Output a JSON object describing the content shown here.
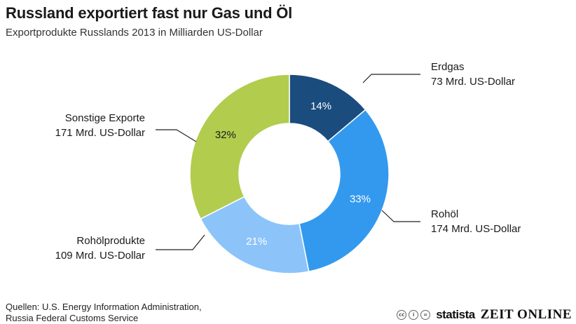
{
  "header": {
    "title": "Russland exportiert fast nur Gas und Öl",
    "subtitle": "Exportprodukte Russlands 2013 in Milliarden US-Dollar"
  },
  "chart_data": {
    "type": "pie",
    "variant": "donut",
    "title": "Russland exportiert fast nur Gas und Öl",
    "subtitle": "Exportprodukte Russlands 2013 in Milliarden US-Dollar",
    "unit": "Mrd. US-Dollar",
    "slices": [
      {
        "name": "Erdgas",
        "value": 73,
        "value_label": "73 Mrd. US-Dollar",
        "percent": 14,
        "percent_label": "14%",
        "color": "#1b4c7e",
        "text_color": "#ffffff"
      },
      {
        "name": "Rohöl",
        "value": 174,
        "value_label": "174 Mrd. US-Dollar",
        "percent": 33,
        "percent_label": "33%",
        "color": "#3399ee",
        "text_color": "#ffffff"
      },
      {
        "name": "Rohölprodukte",
        "value": 109,
        "value_label": "109 Mrd. US-Dollar",
        "percent": 21,
        "percent_label": "21%",
        "color": "#8cc4fa",
        "text_color": "#ffffff"
      },
      {
        "name": "Sonstige Exporte",
        "value": 171,
        "value_label": "171 Mrd. US-Dollar",
        "percent": 32,
        "percent_label": "32%",
        "color": "#b2cc4e",
        "text_color": "#1a1a1a"
      }
    ]
  },
  "footer": {
    "sources_line1": "Quellen: U.S. Energy Information Administration,",
    "sources_line2": "Russia Federal Customs Service",
    "brand1": "statista",
    "brand2": "ZEIT ONLINE",
    "license_icons": [
      "cc-icon",
      "by-icon",
      "nd-icon"
    ]
  }
}
